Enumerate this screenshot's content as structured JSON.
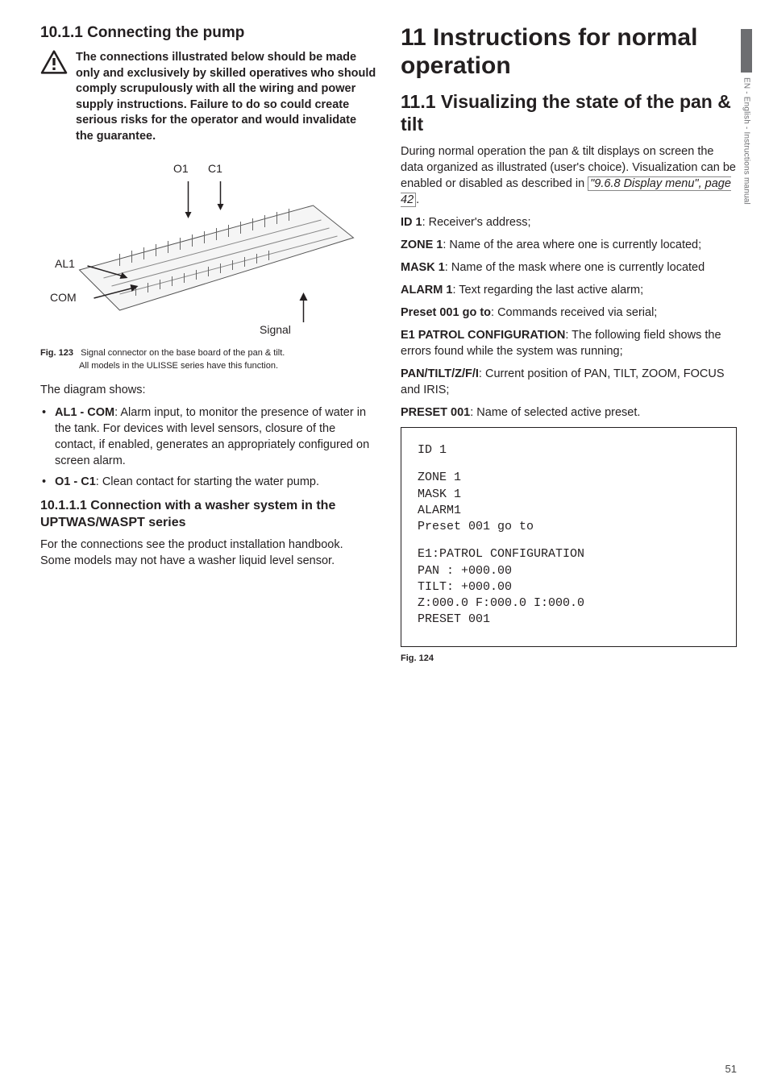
{
  "side_tab": {
    "text": "EN - English - Instructions manual"
  },
  "page_number": "51",
  "left": {
    "h_10_1_1": "10.1.1  Connecting the pump",
    "warning": "The connections illustrated below should be made only and exclusively by skilled operatives who should comply scrupulously with all the wiring and power supply instructions. Failure to do so could create serious risks for the operator and would invalidate the guarantee.",
    "diagram_labels": {
      "O1": "O1",
      "C1": "C1",
      "AL1": "AL1",
      "COM": "COM",
      "Signal": "Signal"
    },
    "fig123_label": "Fig. 123",
    "fig123_text1": "Signal connector on the base board of the pan & tilt.",
    "fig123_text2": "All models in the ULISSE series have this function.",
    "diagram_shows": "The diagram shows:",
    "bullet1_b": "AL1 - COM",
    "bullet1_t": ": Alarm input, to monitor the presence of water in the tank. For devices with level sensors, closure of the contact, if enabled, generates an appropriately configured on screen alarm.",
    "bullet2_b": "O1 - C1",
    "bullet2_t": ": Clean contact for starting the water pump.",
    "h_10_1_1_1": "10.1.1.1  Connection with a washer system in the UPTWAS/WASPT series",
    "p_10_1_1_1": "For the connections see the product installation handbook. Some models may not have a washer liquid level sensor."
  },
  "right": {
    "h_11": "11  Instructions for normal operation",
    "h_11_1": "11.1  Visualizing the state of the pan & tilt",
    "p1a": "During normal operation the pan & tilt displays on screen the data organized as illustrated (user's choice). Visualization can be enabled or disabled as described in ",
    "p1_ref": "\"9.6.8 Display menu\", page 42",
    "p1b": ".",
    "defs": [
      {
        "b": "ID 1",
        "t": ": Receiver's address;"
      },
      {
        "b": "ZONE 1",
        "t": ": Name of the area where one is currently located;"
      },
      {
        "b": "MASK 1",
        "t": ": Name of the mask where one is currently located"
      },
      {
        "b": "ALARM 1",
        "t": ": Text regarding the last active alarm;"
      },
      {
        "b": "Preset 001 go to",
        "t": ": Commands received via serial;"
      },
      {
        "b": "E1 PATROL CONFIGURATION",
        "t": ": The following field shows the errors found while the system was running;"
      },
      {
        "b": "PAN/TILT/Z/F/I",
        "t": ": Current position of PAN, TILT, ZOOM, FOCUS and IRIS;"
      },
      {
        "b": "PRESET 001",
        "t": ": Name of selected active preset."
      }
    ],
    "osd": {
      "l1": "ID 1",
      "l2": "ZONE 1",
      "l3": "MASK 1",
      "l4": "ALARM1",
      "l5": "Preset 001 go to",
      "l6": "E1:PATROL CONFIGURATION",
      "l7": "PAN : +000.00",
      "l8": "TILT: +000.00",
      "l9": "Z:000.0 F:000.0 I:000.0",
      "l10": "PRESET 001"
    },
    "fig124": "Fig. 124"
  },
  "colors": {
    "text": "#231f20",
    "gray": "#6d6e71",
    "diagram_line": "#555555"
  }
}
